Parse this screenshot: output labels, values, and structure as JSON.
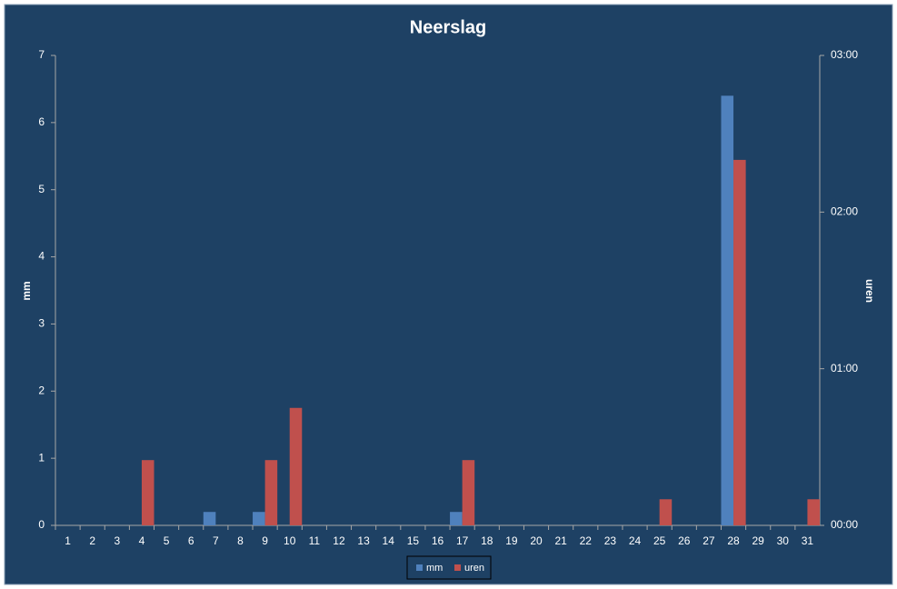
{
  "chart_data": {
    "type": "bar",
    "title": "Neerslag",
    "y_label": "mm",
    "y2_label": "uren",
    "categories": [
      "1",
      "2",
      "3",
      "4",
      "5",
      "6",
      "7",
      "8",
      "9",
      "10",
      "11",
      "12",
      "13",
      "14",
      "15",
      "16",
      "17",
      "18",
      "19",
      "20",
      "21",
      "22",
      "23",
      "24",
      "25",
      "26",
      "27",
      "28",
      "29",
      "30",
      "31"
    ],
    "series": [
      {
        "name": "mm",
        "color": "#4f81bd",
        "values": [
          0,
          0,
          0,
          0,
          0,
          0,
          0.2,
          0,
          0.2,
          0,
          0,
          0,
          0,
          0,
          0,
          0,
          0.2,
          0,
          0,
          0,
          0,
          0,
          0,
          0,
          0,
          0,
          0,
          6.4,
          0,
          0,
          0
        ]
      },
      {
        "name": "uren",
        "color": "#c0504d",
        "axis": "y2",
        "values": [
          0,
          0,
          0,
          25,
          0,
          0,
          0,
          0,
          25,
          45,
          0,
          0,
          0,
          0,
          0,
          0,
          25,
          0,
          0,
          0,
          0,
          0,
          0,
          0,
          10,
          0,
          0,
          140,
          0,
          0,
          10
        ]
      }
    ],
    "ylim": [
      0,
      7
    ],
    "yticks": [
      0,
      1,
      2,
      3,
      4,
      5,
      6,
      7
    ],
    "y2lim": [
      0,
      180
    ],
    "y2ticks": [
      {
        "value": 0,
        "label": "00:00"
      },
      {
        "value": 60,
        "label": "01:00"
      },
      {
        "value": 120,
        "label": "02:00"
      },
      {
        "value": 180,
        "label": "03:00"
      }
    ],
    "grid": false,
    "legend": "bottom"
  }
}
